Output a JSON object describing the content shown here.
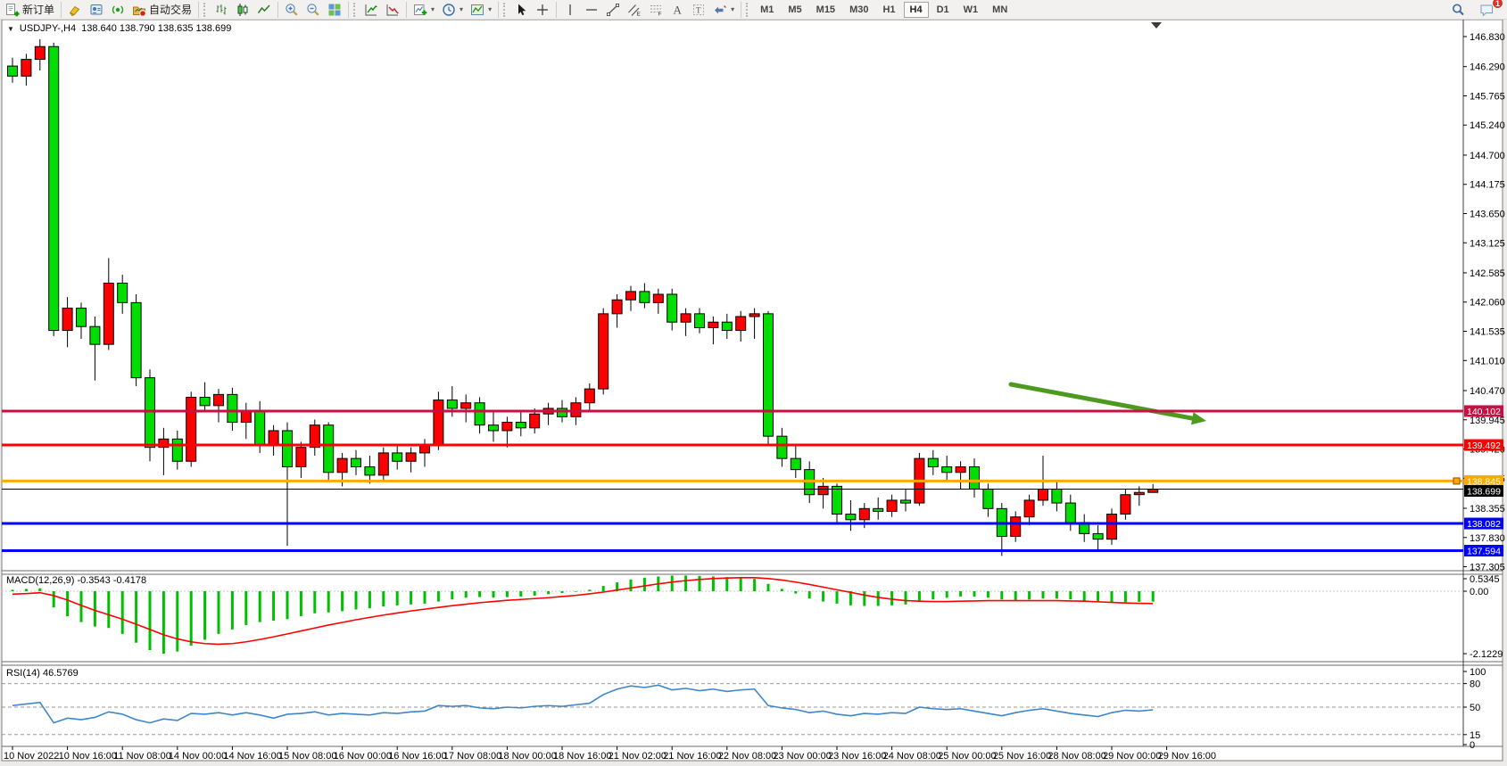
{
  "toolbar": {
    "new_order_label": "新订单",
    "autotrading_label": "自动交易",
    "timeframes": [
      "M1",
      "M5",
      "M15",
      "M30",
      "H1",
      "H4",
      "D1",
      "W1",
      "MN"
    ],
    "active_timeframe": "H4",
    "notification_count": "1"
  },
  "chart": {
    "title": {
      "symbol_period": "USDJPY-,H4",
      "quote_ohlc": "138.640 138.790 138.635 138.699"
    },
    "macd_label": "MACD(12,26,9) -0.3543 -0.4178",
    "rsi_label": "RSI(14) 46.5769"
  },
  "chart_data": [
    {
      "type": "candlestick",
      "title": "USDJPY- H4",
      "symbol": "USDJPY-",
      "timeframe": "H4",
      "current_quote": {
        "open": 138.64,
        "high": 138.79,
        "low": 138.635,
        "close": 138.699
      },
      "up_color": "#ff0000",
      "down_color": "#00dd00",
      "wick_color": "#000000",
      "ylim": [
        137.2,
        146.9
      ],
      "y_tick_labels": [
        "146.830",
        "146.290",
        "145.765",
        "145.240",
        "144.700",
        "144.175",
        "143.650",
        "143.125",
        "142.585",
        "142.060",
        "141.535",
        "141.010",
        "140.470",
        "139.945",
        "139.420",
        "138.895",
        "138.355",
        "137.830",
        "137.305"
      ],
      "x_labels": [
        "10 Nov 2022",
        "10 Nov 16:00",
        "11 Nov 08:00",
        "14 Nov 00:00",
        "14 Nov 16:00",
        "15 Nov 08:00",
        "16 Nov 00:00",
        "16 Nov 16:00",
        "17 Nov 08:00",
        "18 Nov 00:00",
        "18 Nov 16:00",
        "21 Nov 02:00",
        "21 Nov 16:00",
        "22 Nov 08:00",
        "23 Nov 00:00",
        "23 Nov 16:00",
        "24 Nov 08:00",
        "25 Nov 00:00",
        "25 Nov 16:00",
        "28 Nov 08:00",
        "29 Nov 00:00",
        "29 Nov 16:00"
      ],
      "candles_ohlc": [
        [
          146.3,
          146.45,
          146.0,
          146.12
        ],
        [
          146.12,
          146.52,
          145.95,
          146.42
        ],
        [
          146.42,
          146.78,
          146.22,
          146.65
        ],
        [
          146.65,
          146.72,
          141.45,
          141.55
        ],
        [
          141.55,
          142.15,
          141.25,
          141.95
        ],
        [
          141.95,
          142.05,
          141.4,
          141.62
        ],
        [
          141.62,
          141.8,
          140.65,
          141.3
        ],
        [
          141.3,
          142.85,
          141.2,
          142.4
        ],
        [
          142.4,
          142.55,
          141.85,
          142.05
        ],
        [
          142.05,
          142.2,
          140.55,
          140.7
        ],
        [
          140.7,
          140.85,
          139.2,
          139.45
        ],
        [
          139.45,
          139.8,
          138.95,
          139.6
        ],
        [
          139.6,
          139.75,
          139.05,
          139.2
        ],
        [
          139.2,
          140.45,
          139.1,
          140.35
        ],
        [
          140.35,
          140.62,
          140.08,
          140.2
        ],
        [
          140.2,
          140.5,
          139.9,
          140.4
        ],
        [
          140.4,
          140.52,
          139.75,
          139.9
        ],
        [
          139.9,
          140.25,
          139.6,
          140.1
        ],
        [
          140.1,
          140.28,
          139.35,
          139.5
        ],
        [
          139.5,
          139.85,
          139.3,
          139.75
        ],
        [
          139.75,
          139.9,
          137.68,
          139.1
        ],
        [
          139.1,
          139.55,
          138.9,
          139.45
        ],
        [
          139.45,
          139.95,
          139.3,
          139.85
        ],
        [
          139.85,
          139.9,
          138.85,
          139.0
        ],
        [
          139.0,
          139.35,
          138.75,
          139.25
        ],
        [
          139.25,
          139.4,
          138.95,
          139.1
        ],
        [
          139.1,
          139.3,
          138.8,
          138.95
        ],
        [
          138.95,
          139.45,
          138.85,
          139.35
        ],
        [
          139.35,
          139.5,
          139.05,
          139.2
        ],
        [
          139.2,
          139.45,
          139.0,
          139.35
        ],
        [
          139.35,
          139.6,
          139.1,
          139.5
        ],
        [
          139.5,
          140.45,
          139.4,
          140.3
        ],
        [
          140.3,
          140.55,
          140.0,
          140.15
        ],
        [
          140.15,
          140.4,
          139.9,
          140.25
        ],
        [
          140.25,
          140.35,
          139.7,
          139.85
        ],
        [
          139.85,
          140.1,
          139.55,
          139.75
        ],
        [
          139.75,
          140.0,
          139.45,
          139.9
        ],
        [
          139.9,
          140.1,
          139.65,
          139.8
        ],
        [
          139.8,
          140.15,
          139.7,
          140.05
        ],
        [
          140.05,
          140.25,
          139.85,
          140.15
        ],
        [
          140.15,
          140.3,
          139.9,
          140.0
        ],
        [
          140.0,
          140.35,
          139.85,
          140.25
        ],
        [
          140.25,
          140.6,
          140.1,
          140.5
        ],
        [
          140.5,
          141.95,
          140.4,
          141.85
        ],
        [
          141.85,
          142.2,
          141.6,
          142.1
        ],
        [
          142.1,
          142.35,
          141.9,
          142.25
        ],
        [
          142.25,
          142.4,
          141.95,
          142.05
        ],
        [
          142.05,
          142.3,
          141.85,
          142.2
        ],
        [
          142.2,
          142.3,
          141.55,
          141.7
        ],
        [
          141.7,
          141.95,
          141.45,
          141.85
        ],
        [
          141.85,
          141.95,
          141.5,
          141.6
        ],
        [
          141.6,
          141.8,
          141.3,
          141.7
        ],
        [
          141.7,
          141.85,
          141.4,
          141.55
        ],
        [
          141.55,
          141.9,
          141.35,
          141.8
        ],
        [
          141.8,
          141.95,
          141.4,
          141.85
        ],
        [
          141.85,
          141.9,
          139.5,
          139.65
        ],
        [
          139.65,
          139.8,
          139.1,
          139.25
        ],
        [
          139.25,
          139.5,
          138.9,
          139.05
        ],
        [
          139.05,
          139.2,
          138.45,
          138.6
        ],
        [
          138.6,
          138.9,
          138.35,
          138.75
        ],
        [
          138.75,
          138.8,
          138.1,
          138.25
        ],
        [
          138.25,
          138.5,
          137.95,
          138.15
        ],
        [
          138.15,
          138.45,
          138.0,
          138.35
        ],
        [
          138.35,
          138.55,
          138.15,
          138.3
        ],
        [
          138.3,
          138.6,
          138.2,
          138.5
        ],
        [
          138.5,
          138.7,
          138.3,
          138.45
        ],
        [
          138.45,
          139.35,
          138.4,
          139.25
        ],
        [
          139.25,
          139.4,
          138.95,
          139.1
        ],
        [
          139.1,
          139.3,
          138.85,
          139.0
        ],
        [
          139.0,
          139.2,
          138.7,
          139.1
        ],
        [
          139.1,
          139.25,
          138.55,
          138.7
        ],
        [
          138.7,
          138.8,
          138.2,
          138.35
        ],
        [
          138.35,
          138.45,
          137.5,
          137.85
        ],
        [
          137.85,
          138.3,
          137.75,
          138.2
        ],
        [
          138.2,
          138.6,
          138.05,
          138.5
        ],
        [
          138.5,
          139.3,
          138.4,
          138.7
        ],
        [
          138.7,
          138.85,
          138.3,
          138.45
        ],
        [
          138.45,
          138.6,
          137.95,
          138.1
        ],
        [
          138.1,
          138.25,
          137.75,
          137.9
        ],
        [
          137.9,
          138.05,
          137.6,
          137.8
        ],
        [
          137.8,
          138.35,
          137.7,
          138.25
        ],
        [
          138.25,
          138.7,
          138.15,
          138.6
        ],
        [
          138.6,
          138.75,
          138.4,
          138.64
        ],
        [
          138.64,
          138.79,
          138.635,
          138.699
        ]
      ],
      "levels": [
        {
          "price": 140.102,
          "label": "140.102",
          "color": "#c81045"
        },
        {
          "price": 139.492,
          "label": "139.492",
          "color": "#ff0000"
        },
        {
          "price": 138.845,
          "label": "138.845",
          "color": "#ffa800",
          "handle": true
        },
        {
          "price": 138.699,
          "label": "138.699",
          "color": "#000000",
          "is_current_price": true
        },
        {
          "price": 138.082,
          "label": "138.082",
          "color": "#0000ff"
        },
        {
          "price": 137.594,
          "label": "137.594",
          "color": "#0000ff"
        }
      ],
      "annotation_arrow": {
        "color": "#4c9a1e"
      }
    },
    {
      "type": "bar",
      "title": "MACD(12,26,9)",
      "label": "MACD(12,26,9) -0.3543 -0.4178",
      "macd_value": -0.3543,
      "signal_value": -0.4178,
      "y_tick_labels": [
        "0.5345",
        "0.00",
        "-2.1229"
      ],
      "y_tick_values": [
        0.5345,
        0.0,
        -2.1229
      ],
      "hist_color": "#00c000",
      "signal_color": "#ff0000",
      "histogram": [
        0.05,
        0.08,
        0.1,
        -0.55,
        -0.85,
        -1.05,
        -1.2,
        -1.25,
        -1.45,
        -1.75,
        -2.0,
        -2.12,
        -2.05,
        -1.85,
        -1.65,
        -1.45,
        -1.3,
        -1.15,
        -1.05,
        -1.0,
        -0.95,
        -0.85,
        -0.75,
        -0.72,
        -0.68,
        -0.62,
        -0.58,
        -0.52,
        -0.48,
        -0.45,
        -0.42,
        -0.35,
        -0.28,
        -0.22,
        -0.2,
        -0.22,
        -0.2,
        -0.18,
        -0.15,
        -0.1,
        -0.06,
        -0.02,
        0.05,
        0.18,
        0.3,
        0.4,
        0.46,
        0.5,
        0.53,
        0.5345,
        0.52,
        0.5,
        0.48,
        0.45,
        0.42,
        0.25,
        0.08,
        -0.08,
        -0.25,
        -0.35,
        -0.42,
        -0.48,
        -0.5,
        -0.5,
        -0.48,
        -0.45,
        -0.35,
        -0.28,
        -0.22,
        -0.18,
        -0.18,
        -0.22,
        -0.28,
        -0.3,
        -0.28,
        -0.25,
        -0.25,
        -0.28,
        -0.32,
        -0.36,
        -0.38,
        -0.37,
        -0.36,
        -0.3543
      ],
      "signal": [
        -0.1,
        -0.08,
        -0.05,
        -0.15,
        -0.3,
        -0.48,
        -0.65,
        -0.8,
        -0.95,
        -1.12,
        -1.3,
        -1.48,
        -1.62,
        -1.72,
        -1.78,
        -1.8,
        -1.78,
        -1.72,
        -1.64,
        -1.55,
        -1.45,
        -1.35,
        -1.25,
        -1.15,
        -1.06,
        -0.97,
        -0.89,
        -0.81,
        -0.74,
        -0.67,
        -0.61,
        -0.55,
        -0.49,
        -0.44,
        -0.39,
        -0.35,
        -0.31,
        -0.28,
        -0.25,
        -0.22,
        -0.18,
        -0.14,
        -0.09,
        -0.03,
        0.04,
        0.11,
        0.18,
        0.25,
        0.31,
        0.36,
        0.4,
        0.43,
        0.45,
        0.46,
        0.46,
        0.43,
        0.38,
        0.31,
        0.23,
        0.14,
        0.05,
        -0.04,
        -0.13,
        -0.21,
        -0.27,
        -0.32,
        -0.34,
        -0.35,
        -0.35,
        -0.34,
        -0.33,
        -0.32,
        -0.32,
        -0.32,
        -0.32,
        -0.32,
        -0.32,
        -0.33,
        -0.34,
        -0.36,
        -0.38,
        -0.4,
        -0.41,
        -0.4178
      ]
    },
    {
      "type": "line",
      "title": "RSI(14)",
      "label": "RSI(14) 46.5769",
      "rsi_value": 46.5769,
      "y_tick_labels": [
        "100",
        "80",
        "50",
        "15",
        "0"
      ],
      "y_tick_values": [
        100,
        80,
        50,
        15,
        0
      ],
      "dashed_levels": [
        80,
        50,
        15
      ],
      "line_color": "#3e86c8",
      "values": [
        52,
        54,
        56,
        30,
        36,
        34,
        37,
        44,
        41,
        34,
        30,
        35,
        33,
        42,
        41,
        43,
        40,
        43,
        40,
        36,
        41,
        42,
        44,
        40,
        42,
        41,
        40,
        43,
        42,
        44,
        45,
        52,
        51,
        52,
        49,
        48,
        50,
        49,
        51,
        52,
        51,
        53,
        55,
        66,
        73,
        77,
        75,
        78,
        72,
        74,
        71,
        73,
        70,
        72,
        73,
        52,
        49,
        47,
        43,
        45,
        41,
        39,
        42,
        41,
        43,
        42,
        50,
        48,
        47,
        48,
        45,
        42,
        39,
        43,
        46,
        48,
        45,
        42,
        40,
        38,
        43,
        46,
        45,
        46.58
      ]
    }
  ]
}
